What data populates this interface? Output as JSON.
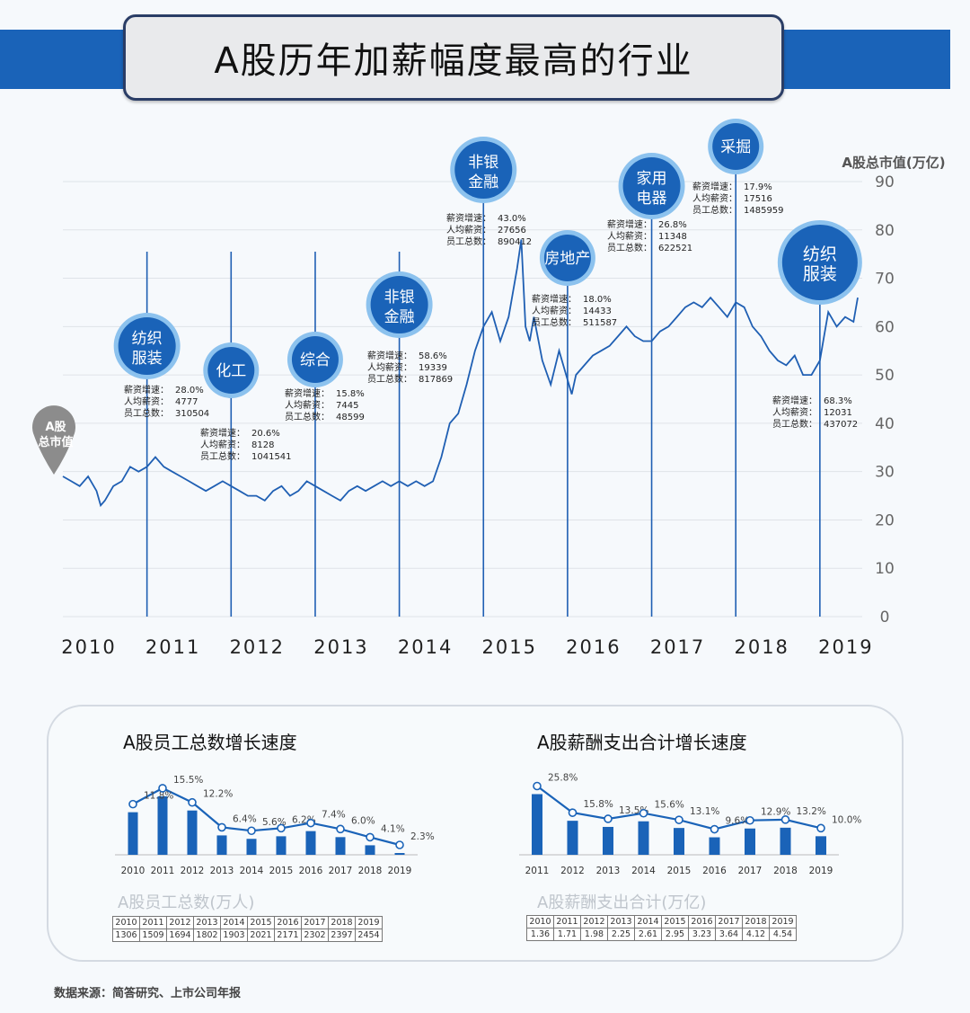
{
  "title": "A股历年加薪幅度最高的行业",
  "source": "数据来源：简答研究、上市公司年报",
  "chart_data": [
    {
      "type": "line",
      "ylabel": "A股总市值(万亿)",
      "ylim": [
        0,
        90
      ],
      "yticks": [
        0,
        10,
        20,
        30,
        40,
        50,
        60,
        70,
        80,
        90
      ],
      "xlim": [
        2010,
        2019.45
      ],
      "xticks": [
        "2010",
        "2011",
        "2012",
        "2013",
        "2014",
        "2015",
        "2016",
        "2017",
        "2018",
        "2019"
      ],
      "marker_label": "A股总市值",
      "series": [
        {
          "x": [
            2010.0,
            2010.1,
            2010.2,
            2010.3,
            2010.4,
            2010.45,
            2010.5,
            2010.6,
            2010.7,
            2010.8,
            2010.9,
            2011.0,
            2011.1,
            2011.2,
            2011.3,
            2011.4,
            2011.5,
            2011.6,
            2011.7,
            2011.8,
            2011.9,
            2012.0,
            2012.1,
            2012.2,
            2012.3,
            2012.4,
            2012.5,
            2012.6,
            2012.7,
            2012.8,
            2012.9,
            2013.0,
            2013.1,
            2013.2,
            2013.3,
            2013.4,
            2013.5,
            2013.6,
            2013.7,
            2013.8,
            2013.9,
            2014.0,
            2014.1,
            2014.2,
            2014.3,
            2014.4,
            2014.5,
            2014.6,
            2014.7,
            2014.8,
            2014.9,
            2015.0,
            2015.1,
            2015.2,
            2015.3,
            2015.4,
            2015.45,
            2015.5,
            2015.55,
            2015.6,
            2015.7,
            2015.8,
            2015.9,
            2016.0,
            2016.05,
            2016.1,
            2016.2,
            2016.3,
            2016.4,
            2016.5,
            2016.6,
            2016.7,
            2016.8,
            2016.9,
            2017.0,
            2017.1,
            2017.2,
            2017.3,
            2017.4,
            2017.5,
            2017.6,
            2017.7,
            2017.8,
            2017.9,
            2018.0,
            2018.1,
            2018.2,
            2018.3,
            2018.4,
            2018.5,
            2018.6,
            2018.7,
            2018.8,
            2018.9,
            2019.0,
            2019.05,
            2019.1,
            2019.2,
            2019.3,
            2019.4,
            2019.45
          ],
          "y": [
            29,
            28,
            27,
            29,
            26,
            23,
            24,
            27,
            28,
            31,
            30,
            31,
            33,
            31,
            30,
            29,
            28,
            27,
            26,
            27,
            28,
            27,
            26,
            25,
            25,
            24,
            26,
            27,
            25,
            26,
            28,
            27,
            26,
            25,
            24,
            26,
            27,
            26,
            27,
            28,
            27,
            28,
            27,
            28,
            27,
            28,
            33,
            40,
            42,
            48,
            55,
            60,
            63,
            57,
            62,
            72,
            78,
            60,
            57,
            62,
            53,
            48,
            55,
            49,
            46,
            50,
            52,
            54,
            55,
            56,
            58,
            60,
            58,
            57,
            57,
            59,
            60,
            62,
            64,
            65,
            64,
            66,
            64,
            62,
            65,
            64,
            60,
            58,
            55,
            53,
            52,
            54,
            50,
            50,
            53,
            58,
            63,
            60,
            62,
            61,
            66
          ]
        }
      ],
      "annotations": [
        {
          "year": "2011",
          "industry": "纺织服装",
          "lines": [
            "纺织",
            "服装"
          ],
          "salary_growth": "28.0%",
          "avg_salary": "4777",
          "employees": "310504"
        },
        {
          "year": "2012",
          "industry": "化工",
          "lines": [
            "化工"
          ],
          "salary_growth": "20.6%",
          "avg_salary": "8128",
          "employees": "1041541"
        },
        {
          "year": "2013",
          "industry": "综合",
          "lines": [
            "综合"
          ],
          "salary_growth": "15.8%",
          "avg_salary": "7445",
          "employees": "48599"
        },
        {
          "year": "2014",
          "industry": "非银金融",
          "lines": [
            "非银",
            "金融"
          ],
          "salary_growth": "58.6%",
          "avg_salary": "19339",
          "employees": "817869"
        },
        {
          "year": "2015",
          "industry": "非银金融",
          "lines": [
            "非银",
            "金融"
          ],
          "salary_growth": "43.0%",
          "avg_salary": "27656",
          "employees": "890412"
        },
        {
          "year": "2016",
          "industry": "房地产",
          "lines": [
            "房地产"
          ],
          "salary_growth": "18.0%",
          "avg_salary": "14433",
          "employees": "511587"
        },
        {
          "year": "2017",
          "industry": "家用电器",
          "lines": [
            "家用",
            "电器"
          ],
          "salary_growth": "26.8%",
          "avg_salary": "11348",
          "employees": "622521"
        },
        {
          "year": "2018",
          "industry": "采掘",
          "lines": [
            "采掘"
          ],
          "salary_growth": "17.9%",
          "avg_salary": "17516",
          "employees": "1485959"
        },
        {
          "year": "2019",
          "industry": "纺织服装",
          "lines": [
            "纺织",
            "服装"
          ],
          "salary_growth": "68.3%",
          "avg_salary": "12031",
          "employees": "437072"
        }
      ],
      "field_labels": {
        "salary_growth": "薪资增速：",
        "avg_salary": "人均薪资：",
        "employees": "员工总数："
      }
    },
    {
      "type": "bar",
      "title": "A股员工总数增长速度",
      "categories": [
        "2010",
        "2011",
        "2012",
        "2013",
        "2014",
        "2015",
        "2016",
        "2017",
        "2018",
        "2019"
      ],
      "values": [
        1306,
        1509,
        1694,
        1802,
        1903,
        2021,
        2171,
        2302,
        2397,
        2454
      ],
      "growth_labels": [
        "11.8%",
        "15.5%",
        "12.2%",
        "6.4%",
        "5.6%",
        "6.2%",
        "7.4%",
        "6.0%",
        "4.1%",
        "2.3%"
      ],
      "growth": [
        11.8,
        15.5,
        12.2,
        6.4,
        5.6,
        6.2,
        7.4,
        6.0,
        4.1,
        2.3
      ],
      "table_caption": "A股员工总数(万人)"
    },
    {
      "type": "bar",
      "title": "A股薪酬支出合计增长速度",
      "categories": [
        "2011",
        "2012",
        "2013",
        "2014",
        "2015",
        "2016",
        "2017",
        "2018",
        "2019"
      ],
      "growth_labels": [
        "25.8%",
        "15.8%",
        "13.5%",
        "15.6%",
        "13.1%",
        "9.6%",
        "12.9%",
        "13.2%",
        "10.0%"
      ],
      "growth": [
        25.8,
        15.8,
        13.5,
        15.6,
        13.1,
        9.6,
        12.9,
        13.2,
        10.0
      ],
      "table_caption": "A股薪酬支出合计(万亿)",
      "table_years": [
        "2010",
        "2011",
        "2012",
        "2013",
        "2014",
        "2015",
        "2016",
        "2017",
        "2018",
        "2019"
      ],
      "table_values": [
        "1.36",
        "1.71",
        "1.98",
        "2.25",
        "2.61",
        "2.95",
        "3.23",
        "3.64",
        "4.12",
        "4.54"
      ]
    }
  ],
  "colors": {
    "line": "#1f5fb3",
    "bar": "#1a63b8",
    "circle": "#1a63b8",
    "ring": "#7fb6e6",
    "band": "#1a63b8"
  }
}
